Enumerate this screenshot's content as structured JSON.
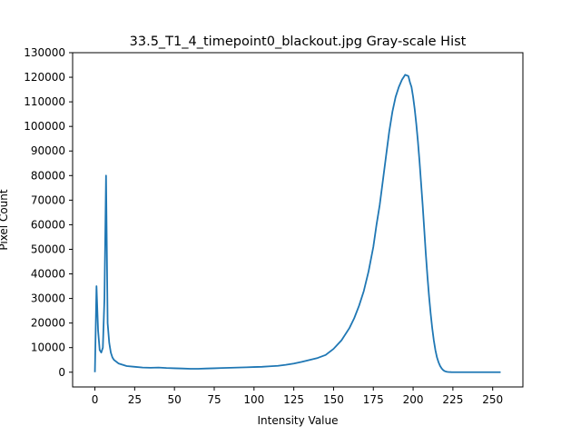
{
  "chart_data": {
    "type": "line",
    "title": "33.5_T1_4_timepoint0_blackout.jpg Gray-scale Hist",
    "xlabel": "Intensity Value",
    "ylabel": "Pixel Count",
    "xlim": [
      -14,
      269
    ],
    "ylim": [
      -6000,
      130000
    ],
    "xticks": [
      0,
      25,
      50,
      75,
      100,
      125,
      150,
      175,
      200,
      225,
      250
    ],
    "yticks": [
      0,
      10000,
      20000,
      30000,
      40000,
      50000,
      60000,
      70000,
      80000,
      90000,
      100000,
      110000,
      120000,
      130000
    ],
    "grid": false,
    "series": [
      {
        "color": "#1f77b4",
        "x": [
          0,
          1,
          2,
          3,
          4,
          5,
          6,
          7,
          8,
          9,
          10,
          11,
          12,
          13,
          15,
          20,
          25,
          30,
          35,
          40,
          45,
          50,
          55,
          60,
          65,
          70,
          75,
          80,
          85,
          90,
          95,
          100,
          105,
          110,
          115,
          120,
          125,
          130,
          135,
          140,
          145,
          150,
          155,
          160,
          163,
          166,
          169,
          172,
          175,
          177,
          179,
          181,
          183,
          185,
          187,
          189,
          191,
          193,
          195,
          197,
          198,
          199,
          200,
          201,
          202,
          203,
          204,
          205,
          206,
          207,
          208,
          209,
          210,
          211,
          212,
          213,
          214,
          215,
          216,
          217,
          218,
          219,
          220,
          221,
          222,
          223,
          224,
          225,
          226,
          227,
          228,
          230,
          235,
          240,
          245,
          250,
          255
        ],
        "y": [
          0,
          35000,
          17000,
          9000,
          8000,
          10000,
          30000,
          80000,
          20000,
          12000,
          8000,
          6000,
          5000,
          4500,
          3500,
          2500,
          2200,
          1900,
          1800,
          1900,
          1700,
          1600,
          1500,
          1400,
          1400,
          1500,
          1600,
          1700,
          1800,
          1900,
          2000,
          2100,
          2200,
          2400,
          2600,
          3000,
          3500,
          4200,
          5000,
          5800,
          7000,
          9500,
          13000,
          18000,
          22000,
          27000,
          33000,
          41000,
          51000,
          60000,
          68000,
          78000,
          88000,
          98000,
          106000,
          112000,
          116000,
          119000,
          121000,
          120500,
          118000,
          116000,
          112000,
          107000,
          101000,
          94000,
          86000,
          77000,
          68000,
          58000,
          48000,
          39000,
          31000,
          24000,
          18000,
          13000,
          9000,
          6000,
          4000,
          2500,
          1500,
          800,
          400,
          200,
          100,
          50,
          20,
          10,
          5,
          0,
          0,
          0,
          0,
          0,
          0,
          0,
          0
        ]
      }
    ]
  }
}
